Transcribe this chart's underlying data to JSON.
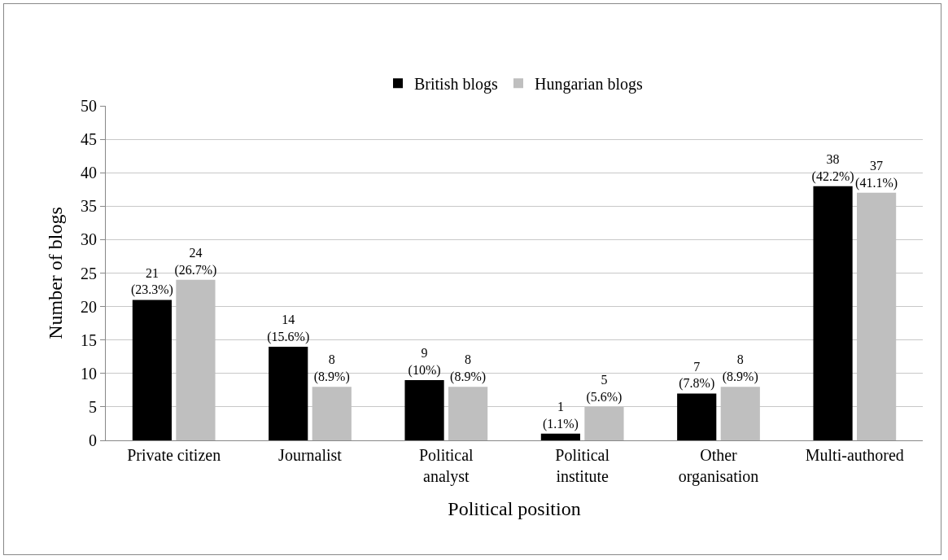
{
  "chart_data": {
    "type": "bar",
    "xlabel": "Political position",
    "ylabel": "Number of blogs",
    "categories": [
      "Private citizen",
      "Journalist",
      "Political\nanalyst",
      "Political\ninstitute",
      "Other\norganisation",
      "Multi-authored"
    ],
    "series": [
      {
        "name": "British blogs",
        "color": "#000000",
        "values": [
          21,
          14,
          9,
          1,
          7,
          38
        ],
        "value_labels": [
          "21\n(23.3%)",
          "14\n(15.6%)",
          "9\n(10%)",
          "1\n(1.1%)",
          "7\n(7.8%)",
          "38\n(42.2%)"
        ]
      },
      {
        "name": "Hungarian blogs",
        "color": "#bfbfbf",
        "values": [
          24,
          8,
          8,
          5,
          8,
          37
        ],
        "value_labels": [
          "24\n(26.7%)",
          "8\n(8.9%)",
          "8\n(8.9%)",
          "5\n(5.6%)",
          "8\n(8.9%)",
          "37\n(41.1%)"
        ]
      }
    ],
    "ylim": [
      0,
      50
    ],
    "yticks": [
      0,
      5,
      10,
      15,
      20,
      25,
      30,
      35,
      40,
      45,
      50
    ],
    "grid": "y",
    "legend": "top"
  }
}
